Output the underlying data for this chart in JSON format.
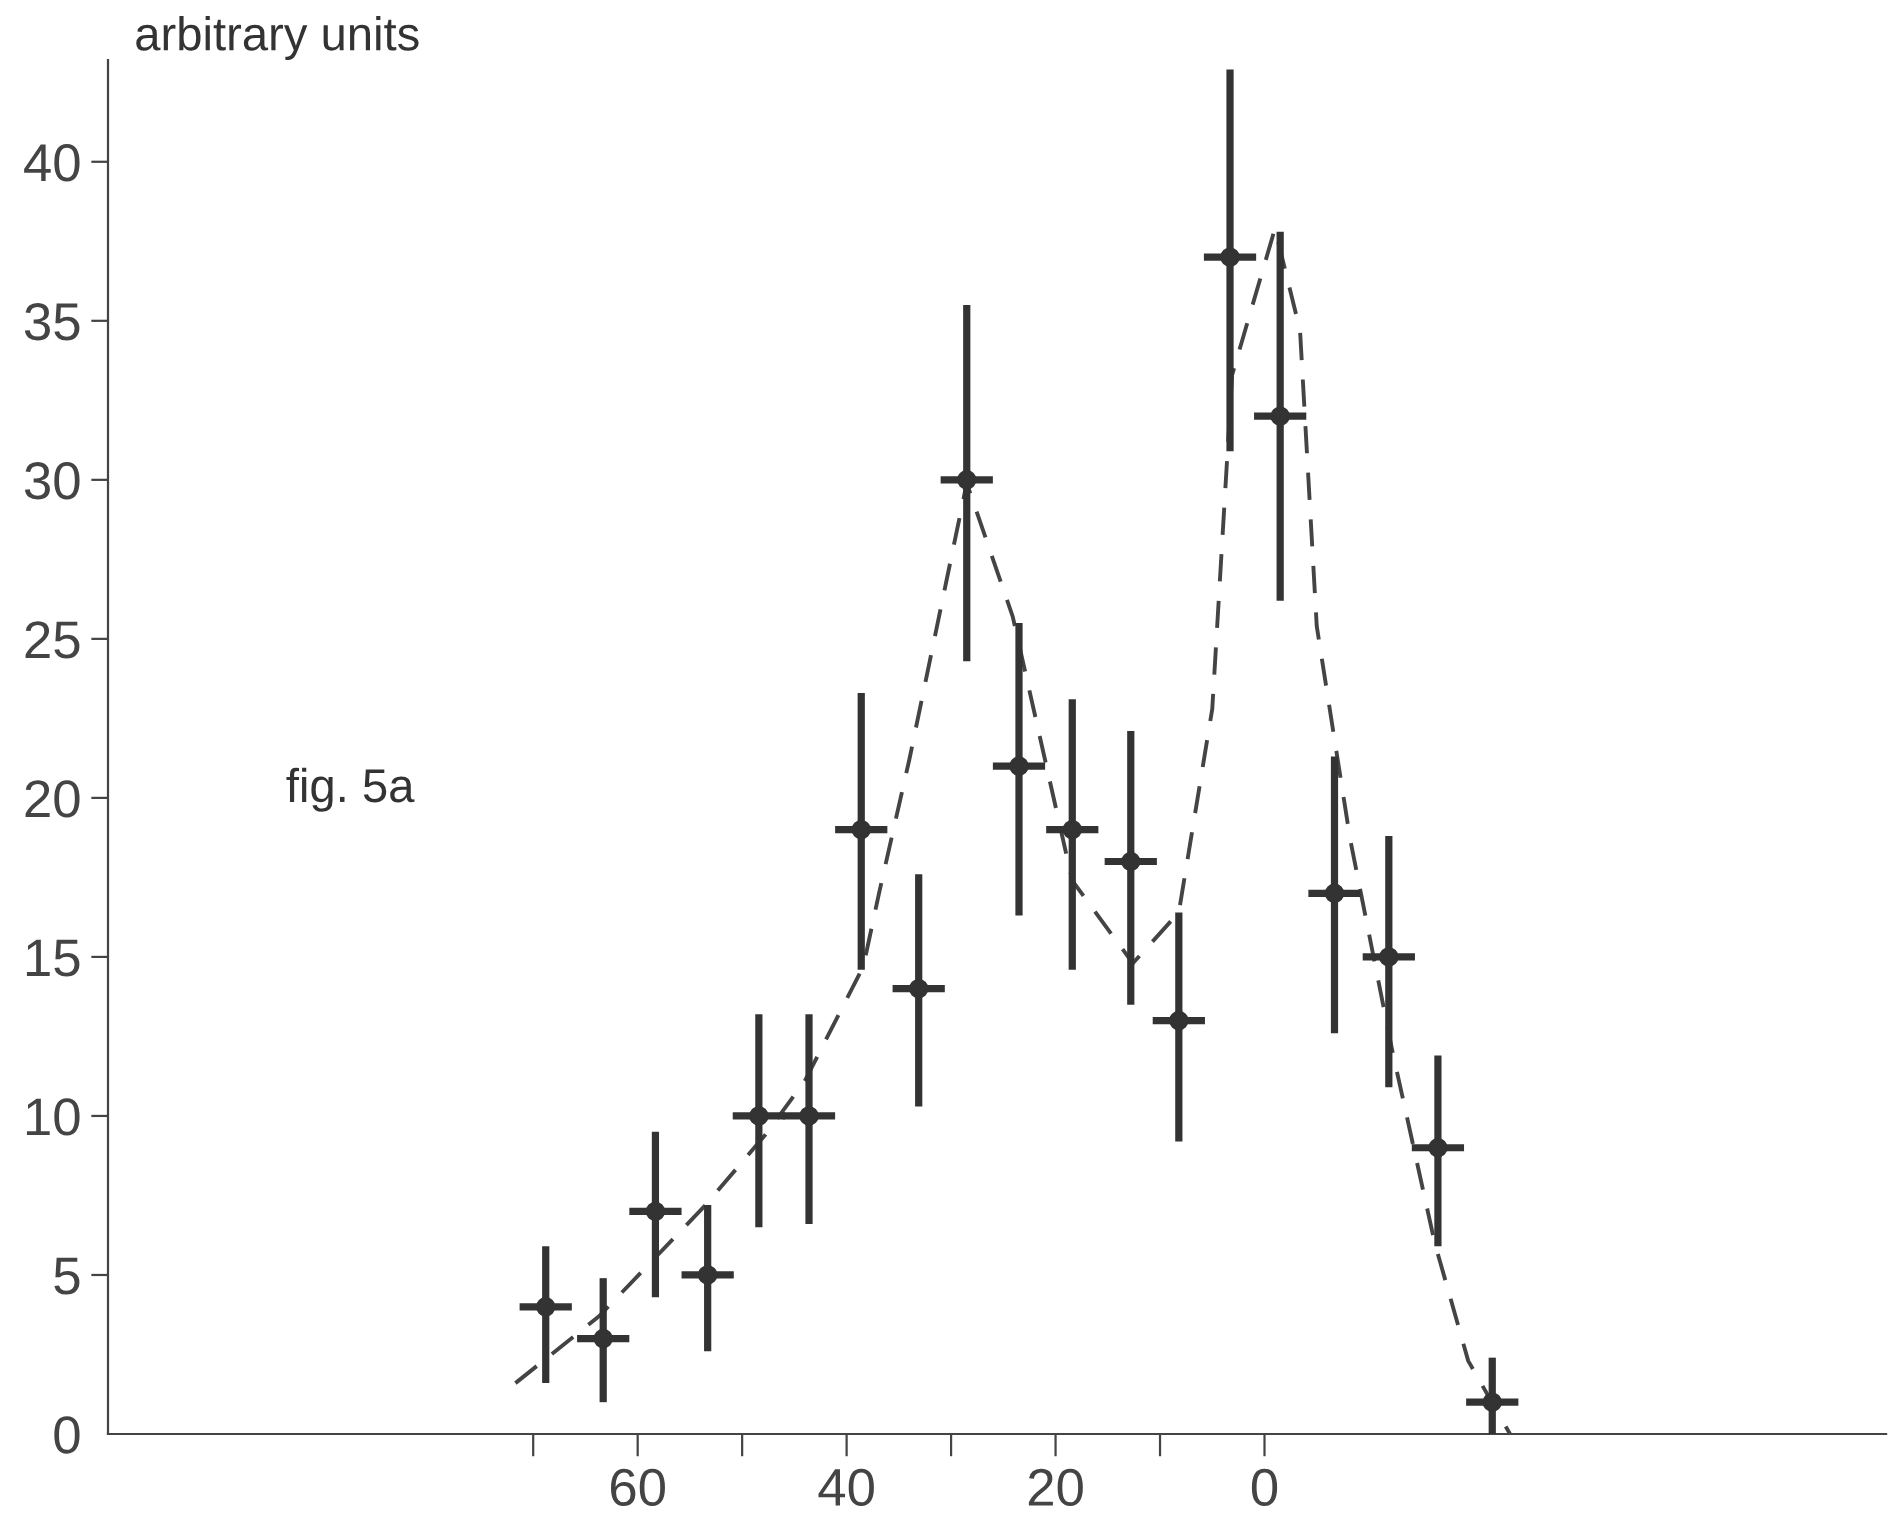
{
  "chart_data": {
    "type": "scatter",
    "ylabel": "arbitrary units",
    "annotations": [
      "fig. 5a"
    ],
    "xlim": [
      110.7,
      -59.5
    ],
    "ylim": [
      0,
      43.2
    ],
    "xticks": [
      {
        "value": 70,
        "label": null
      },
      60,
      {
        "value": 50,
        "label": null
      },
      40,
      {
        "value": 30,
        "label": null
      },
      20,
      {
        "value": 10,
        "label": null
      },
      0
    ],
    "yticks": [
      0,
      5,
      10,
      15,
      20,
      25,
      30,
      35,
      40
    ],
    "grid": false,
    "legend": false,
    "series": [
      {
        "color": "#333333",
        "marker": "circle",
        "x": [
          68.8,
          63.3,
          58.3,
          53.3,
          48.4,
          43.6,
          38.6,
          33.1,
          28.5,
          23.5,
          18.4,
          12.8,
          8.2,
          3.3,
          -1.5,
          -6.7,
          -11.9,
          -16.6,
          -21.8
        ],
        "values": [
          4,
          3,
          7,
          5,
          10,
          10,
          19,
          14,
          30,
          21,
          19,
          18,
          13,
          37,
          32,
          17,
          15,
          9,
          1
        ],
        "errors": [
          [
            1.6,
            5.9
          ],
          [
            1.0,
            4.9
          ],
          [
            4.3,
            9.5
          ],
          [
            2.6,
            7.2
          ],
          [
            6.5,
            13.2
          ],
          [
            6.6,
            13.2
          ],
          [
            14.6,
            23.3
          ],
          [
            10.3,
            17.6
          ],
          [
            24.3,
            35.5
          ],
          [
            16.3,
            25.5
          ],
          [
            14.6,
            23.1
          ],
          [
            13.5,
            22.1
          ],
          [
            9.2,
            16.4
          ],
          [
            30.9,
            42.9
          ],
          [
            26.2,
            37.8
          ],
          [
            12.6,
            21.3
          ],
          [
            10.9,
            18.8
          ],
          [
            5.9,
            11.9
          ],
          [
            0,
            2.4
          ]
        ],
        "xerrors": [
          2.5,
          2.5,
          2.5,
          2.5,
          2.5,
          2.5,
          2.5,
          2.5,
          2.5,
          2.5,
          2.5,
          2.5,
          2.5,
          2.5,
          2.5,
          2.5,
          2.5,
          2.5,
          2.5
        ]
      },
      {
        "type": "line",
        "color": "#444444",
        "line_style": "dashed",
        "marker": "none",
        "x": [
          71.7,
          63.7,
          53.5,
          47.8,
          44,
          38.4,
          36.9,
          34,
          28.5,
          24.1,
          18.4,
          12.6,
          8.2,
          5,
          3.1,
          -1,
          -3.4,
          -5,
          -8.2,
          -12.2,
          -16.3,
          -19.5,
          -23.5
        ],
        "values": [
          1.6,
          3.7,
          7.2,
          9.4,
          11.1,
          14.7,
          17,
          21.2,
          29.9,
          25.7,
          17.4,
          14.8,
          16.4,
          22.8,
          33.3,
          37.9,
          34.7,
          25.4,
          18.7,
          12.1,
          6.0,
          2.3,
          0
        ]
      }
    ]
  }
}
